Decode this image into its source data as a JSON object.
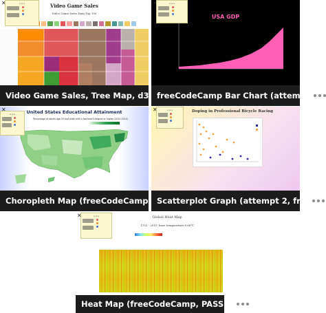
{
  "cards": [
    {
      "title": "Video Game Sales, Tree Map, d3..."
    },
    {
      "title": "freeCodeCamp Bar Chart (attem..."
    },
    {
      "title": "Choropleth Map (freeCodeCamp..."
    },
    {
      "title": "Scatterplot Graph (attempt 2, fr..."
    },
    {
      "title": "Heat Map (freeCodeCamp, PASS..."
    }
  ],
  "treemap": {
    "title": "Video Game Sales",
    "subtitle": "Video Game Sales Data Top 100"
  },
  "bar": {
    "title": "USA GDP"
  },
  "choro": {
    "title": "United States Educational Attainment",
    "subtitle": "Percentage of adults age 25 and older with a bachelor's degree or higher (2010-2014)"
  },
  "scatter": {
    "title": "Doping in Professional Bicycle Racing"
  },
  "heat": {
    "title": "Global Heat Map",
    "subtitle": "1753 - 2015: base temperature 8.66℃"
  },
  "colors": {
    "caption": "#1c1c1c",
    "gdp": "#ff5fb4",
    "panel": "#fbf8cf"
  }
}
